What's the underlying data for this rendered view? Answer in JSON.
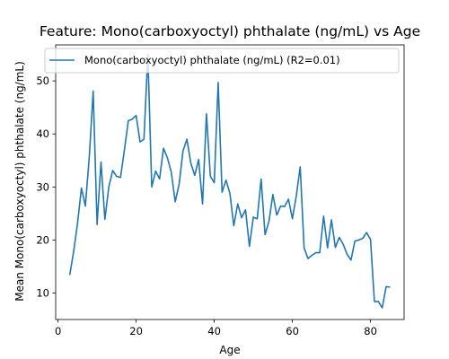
{
  "chart_data": {
    "type": "line",
    "title": "Feature: Mono(carboxyoctyl) phthalate (ng/mL) vs Age",
    "xlabel": "Age",
    "ylabel": "Mean Mono(carboxyoctyl) phthalate (ng/mL)",
    "xlim": [
      -0.6,
      88.6
    ],
    "ylim": [
      5.0,
      56.8
    ],
    "xticks": [
      0,
      20,
      40,
      60,
      80
    ],
    "yticks": [
      10,
      20,
      30,
      40,
      50
    ],
    "grid": false,
    "legend": {
      "placement": "top-left",
      "entries": [
        "Mono(carboxyoctyl) phthalate (ng/mL) (R2=0.01)"
      ]
    },
    "series": [
      {
        "name": "Mono(carboxyoctyl) phthalate (ng/mL) (R2=0.01)",
        "color": "#1f77b4",
        "x": [
          3,
          4,
          5,
          6,
          7,
          8,
          9,
          10,
          11,
          12,
          13,
          14,
          15,
          16,
          17,
          18,
          19,
          20,
          21,
          22,
          23,
          24,
          25,
          26,
          27,
          28,
          29,
          30,
          31,
          32,
          33,
          34,
          35,
          36,
          37,
          38,
          39,
          40,
          41,
          42,
          43,
          44,
          45,
          46,
          47,
          48,
          49,
          50,
          51,
          52,
          53,
          54,
          55,
          56,
          57,
          58,
          59,
          60,
          61,
          62,
          63,
          64,
          65,
          66,
          67,
          68,
          69,
          70,
          71,
          72,
          73,
          74,
          75,
          76,
          77,
          78,
          79,
          80,
          81,
          82,
          83,
          84,
          85
        ],
        "y": [
          13.4,
          17.8,
          23.2,
          29.8,
          26.4,
          35.6,
          48.1,
          22.9,
          34.7,
          23.9,
          30.0,
          33.1,
          32.0,
          31.8,
          37.0,
          42.5,
          42.8,
          43.5,
          38.5,
          39.0,
          55.0,
          30.0,
          33.0,
          31.5,
          37.3,
          35.5,
          32.8,
          27.2,
          30.5,
          36.8,
          39.0,
          34.5,
          32.2,
          35.2,
          26.8,
          43.8,
          32.0,
          30.8,
          49.7,
          29.0,
          31.3,
          28.8,
          22.7,
          26.8,
          24.2,
          25.7,
          18.8,
          24.3,
          24.0,
          31.5,
          21.0,
          23.5,
          28.6,
          24.7,
          26.4,
          26.3,
          27.7,
          24.0,
          28.3,
          33.8,
          18.5,
          16.5,
          17.1,
          17.6,
          17.6,
          24.5,
          18.5,
          23.8,
          18.6,
          20.5,
          19.2,
          17.3,
          16.2,
          19.8,
          20.0,
          20.3,
          21.4,
          20.1,
          8.4,
          8.4,
          7.2,
          11.2,
          11.1
        ]
      }
    ]
  }
}
